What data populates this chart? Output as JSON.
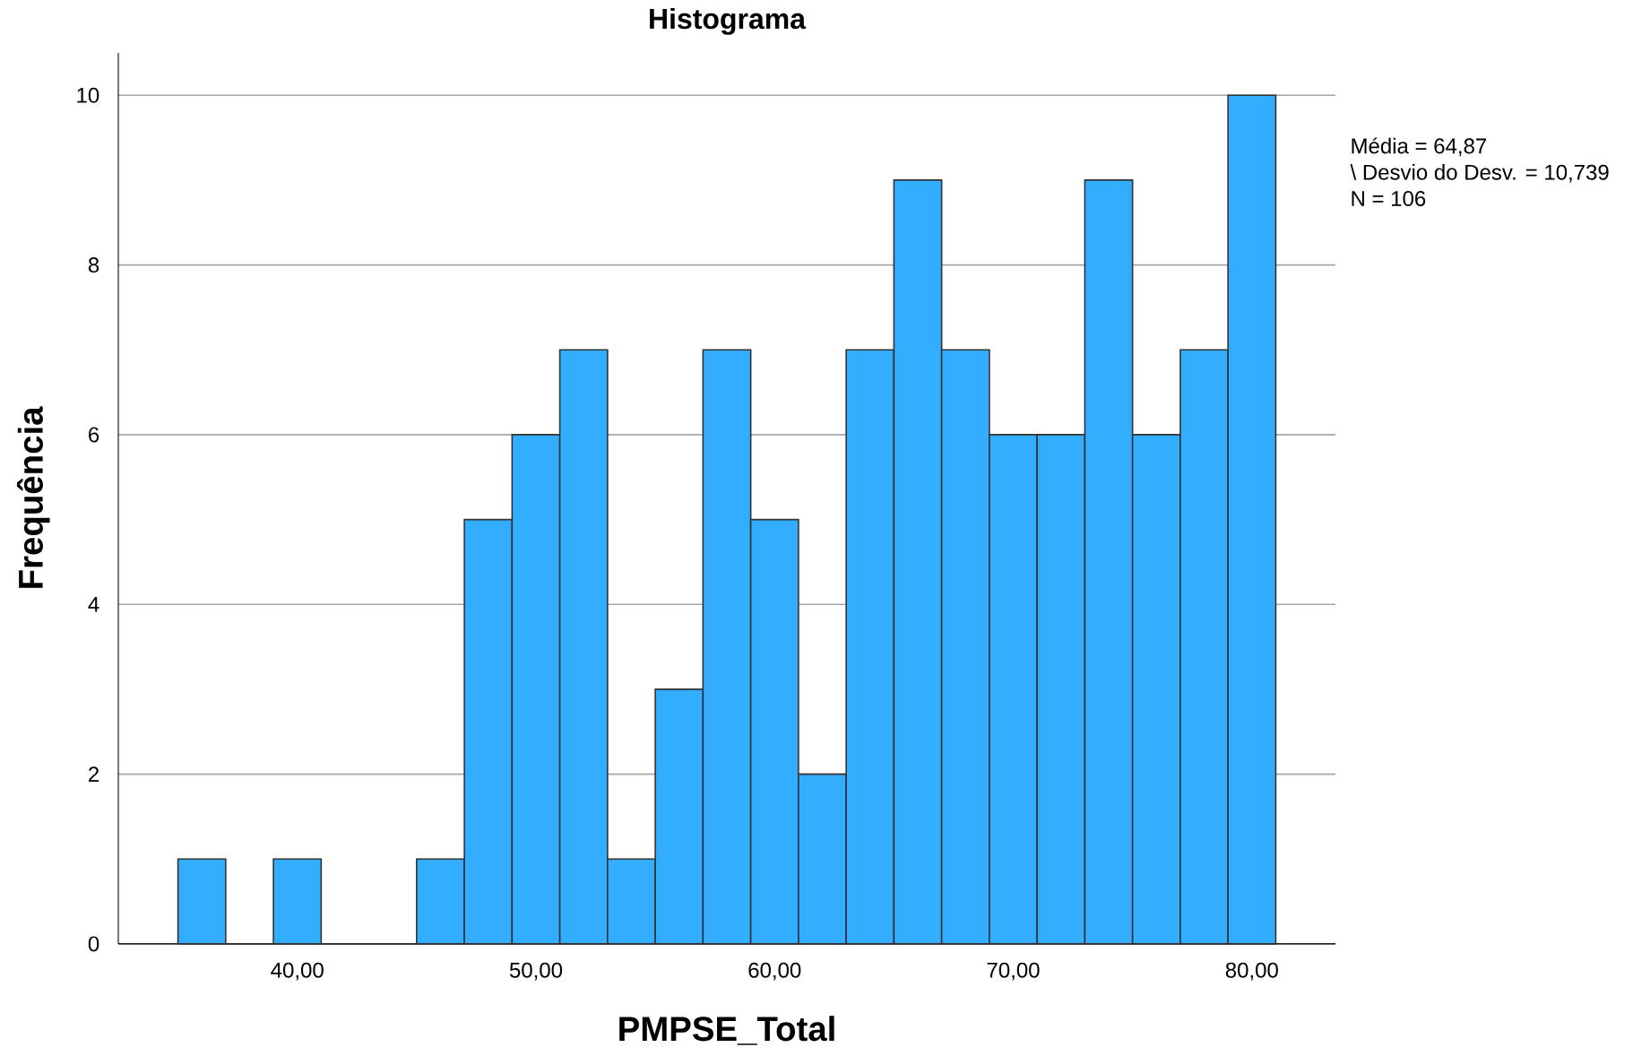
{
  "chart_data": {
    "type": "histogram",
    "title": "Histograma",
    "xlabel": "PMPSE_Total",
    "ylabel": "Frequência",
    "bins": [
      35,
      37,
      39,
      41,
      43,
      45,
      47,
      49,
      51,
      53,
      55,
      57,
      59,
      61,
      63,
      65,
      67,
      69,
      71,
      73,
      75,
      77,
      79,
      81
    ],
    "values": [
      1,
      0,
      1,
      0,
      0,
      1,
      5,
      6,
      7,
      1,
      3,
      7,
      5,
      2,
      7,
      9,
      7,
      6,
      6,
      9,
      6,
      7,
      10
    ],
    "color": "#33adff",
    "xlim": [
      32.5,
      83.5
    ],
    "ylim": [
      0,
      10.5
    ],
    "xticks": [
      {
        "value": 40,
        "label": "40,00"
      },
      {
        "value": 50,
        "label": "50,00"
      },
      {
        "value": 60,
        "label": "60,00"
      },
      {
        "value": 70,
        "label": "70,00"
      },
      {
        "value": 80,
        "label": "80,00"
      }
    ],
    "yticks": [
      0,
      2,
      4,
      6,
      8,
      10
    ],
    "grid": "y",
    "annotations": [
      "Média = 64,87",
      "\\ Desvio do Desv. = 10,739",
      "N = 106"
    ]
  }
}
